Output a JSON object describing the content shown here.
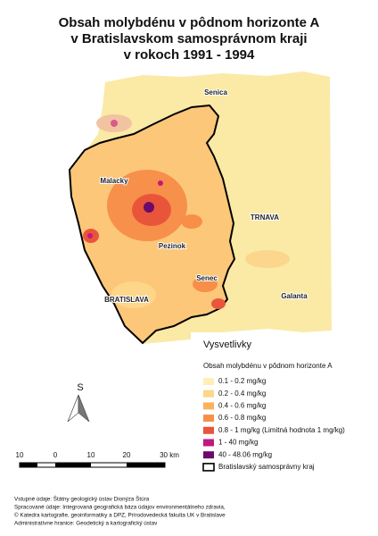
{
  "title": [
    "Obsah molybdénu v pôdnom horizonte A",
    "v Bratislavskom samosprávnom kraji",
    "v rokoch 1991 - 1994"
  ],
  "places": {
    "senica": "Senica",
    "malacky": "Malacky",
    "trnava": "TRNAVA",
    "pezinok": "Pezinok",
    "senec": "Senec",
    "bratislava": "BRATISLAVA",
    "galanta": "Galanta"
  },
  "legend": {
    "heading": "Vysvetlivky",
    "subtitle": "Obsah molybdénu v pôdnom horizonte A",
    "items": [
      {
        "label": "0.1 - 0.2 mg/kg",
        "color": "#fdf0b4"
      },
      {
        "label": "0.2 - 0.4 mg/kg",
        "color": "#fdd68a"
      },
      {
        "label": "0.4 - 0.6 mg/kg",
        "color": "#fbb25f"
      },
      {
        "label": "0.6 - 0.8 mg/kg",
        "color": "#f78f48"
      },
      {
        "label": "0.8 - 1 mg/kg (Limitná hodnota 1 mg/kg)",
        "color": "#e9553a"
      },
      {
        "label": "1 - 40 mg/kg",
        "color": "#c3187c"
      },
      {
        "label": "40 - 48.06 mg/kg",
        "color": "#6b0a6b"
      }
    ],
    "boundary": "Bratislavský samosprávny kraj"
  },
  "north": "S",
  "scale": [
    "10",
    "0",
    "10",
    "20",
    "30 km"
  ],
  "sources": [
    "Vstupné údaje: Štátny geologický ústav Dionýza Štúra",
    "Spracované údaje: Integrovaná geografická báza údajov environmentálneho zdravia,",
    "© Katedra kartografie, geoinformatiky a DPZ, Prírodovedecká fakulta UK v Bratislave",
    "Administratívne hranice: Geodetický a kartografický ústav"
  ]
}
